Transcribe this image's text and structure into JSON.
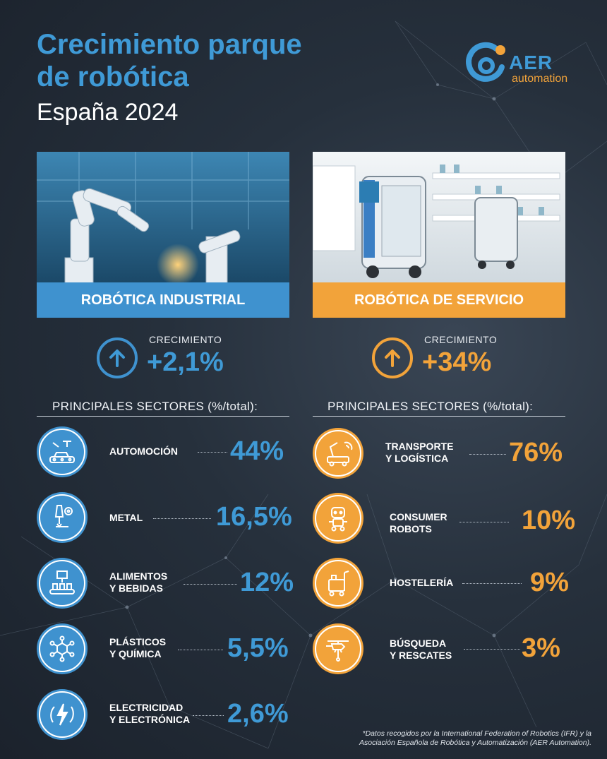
{
  "header": {
    "title_line1": "Crecimiento parque",
    "title_line2": "de robótica",
    "subtitle": "España 2024"
  },
  "logo": {
    "brand": "AER",
    "tagline": "automation"
  },
  "colors": {
    "blue": "#3f92cf",
    "orange": "#f2a33a",
    "background": "#26303c"
  },
  "industrial": {
    "banner": "ROBÓTICA INDUSTRIAL",
    "growth_label": "CRECIMIENTO",
    "growth_value": "+2,1%",
    "sectors_heading": "PRINCIPALES SECTORES (%/total):",
    "sectors": [
      {
        "icon": "automotive-assembly-icon",
        "label": "AUTOMOCIÓN",
        "value": "44%"
      },
      {
        "icon": "metal-welding-icon",
        "label": "METAL",
        "value": "16,5%"
      },
      {
        "icon": "food-conveyor-icon",
        "label_line1": "ALIMENTOS",
        "label_line2": "Y BEBIDAS",
        "value": "12%"
      },
      {
        "icon": "molecule-icon",
        "label_line1": "PLÁSTICOS",
        "label_line2": "Y QUÍMICA",
        "value": "5,5%"
      },
      {
        "icon": "electric-plug-icon",
        "label_line1": "ELECTRICIDAD",
        "label_line2": "Y ELECTRÓNICA",
        "value": "2,6%"
      }
    ]
  },
  "service": {
    "banner": "ROBÓTICA DE SERVICIO",
    "growth_label": "CRECIMIENTO",
    "growth_value": "+34%",
    "sectors_heading": "PRINCIPALES SECTORES (%/total):",
    "sectors": [
      {
        "icon": "transport-robot-icon",
        "label_line1": "TRANSPORTE",
        "label_line2": "Y LOGÍSTICA",
        "value": "76%"
      },
      {
        "icon": "consumer-robot-icon",
        "label_line1": "CONSUMER",
        "label_line2": "ROBOTS",
        "value": "10%"
      },
      {
        "icon": "cleaning-cart-icon",
        "label": "HOSTELERÍA",
        "value": "9%"
      },
      {
        "icon": "rescue-helicopter-icon",
        "label_line1": "BÚSQUEDA",
        "label_line2": "Y RESCATES",
        "value": "3%"
      }
    ]
  },
  "footnote": {
    "line1": "*Datos recogidos por la International Federation of Robotics (IFR) y la",
    "line2": "Asociación Española de Robótica y Automatización (AER Automation)."
  }
}
